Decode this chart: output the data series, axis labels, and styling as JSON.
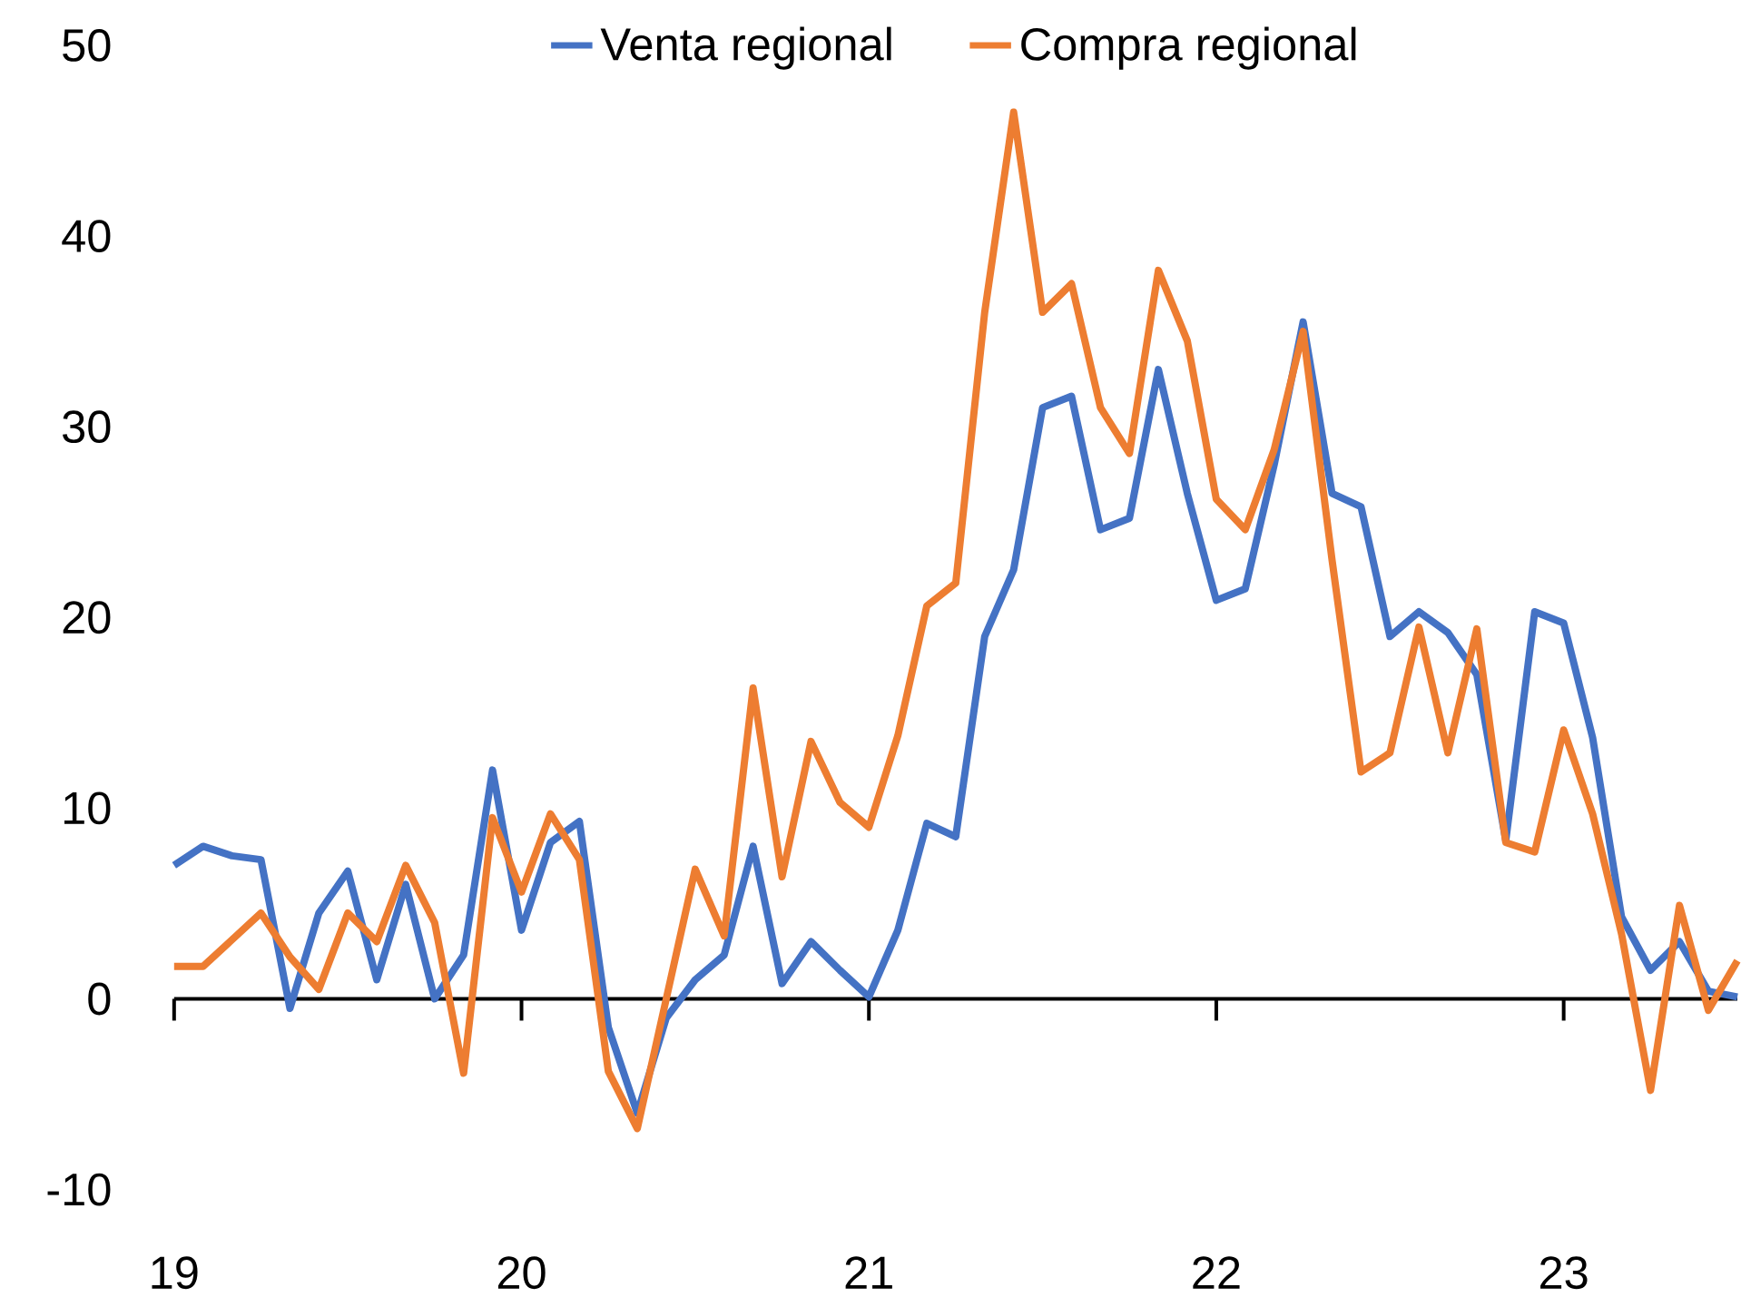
{
  "chart_data": {
    "type": "line",
    "x": [
      "2019-01",
      "2019-02",
      "2019-03",
      "2019-04",
      "2019-05",
      "2019-06",
      "2019-07",
      "2019-08",
      "2019-09",
      "2019-10",
      "2019-11",
      "2019-12",
      "2020-01",
      "2020-02",
      "2020-03",
      "2020-04",
      "2020-05",
      "2020-06",
      "2020-07",
      "2020-08",
      "2020-09",
      "2020-10",
      "2020-11",
      "2020-12",
      "2021-01",
      "2021-02",
      "2021-03",
      "2021-04",
      "2021-05",
      "2021-06",
      "2021-07",
      "2021-08",
      "2021-09",
      "2021-10",
      "2021-11",
      "2021-12",
      "2022-01",
      "2022-02",
      "2022-03",
      "2022-04",
      "2022-05",
      "2022-06",
      "2022-07",
      "2022-08",
      "2022-09",
      "2022-10",
      "2022-11",
      "2022-12",
      "2023-01",
      "2023-02",
      "2023-03",
      "2023-04",
      "2023-05",
      "2023-06",
      "2023-07"
    ],
    "series": [
      {
        "name": "Venta regional",
        "color": "#4472c4",
        "values": [
          7.0,
          8.0,
          7.5,
          7.3,
          -0.5,
          4.5,
          6.7,
          1.0,
          6.0,
          0.0,
          2.3,
          12.0,
          3.6,
          8.2,
          9.3,
          -1.5,
          -6.0,
          -1.0,
          1.0,
          2.3,
          8.0,
          0.8,
          3.0,
          1.5,
          0.1,
          3.6,
          9.2,
          8.5,
          19.0,
          22.5,
          31.0,
          31.6,
          24.6,
          25.2,
          33.0,
          26.5,
          20.9,
          21.5,
          28.0,
          35.5,
          26.5,
          25.8,
          19.0,
          20.3,
          19.2,
          17.0,
          8.3,
          20.3,
          19.7,
          13.7,
          4.3,
          1.5,
          3.0,
          0.4,
          0.1
        ]
      },
      {
        "name": "Compra regional",
        "color": "#ed7d31",
        "values": [
          1.7,
          1.7,
          3.1,
          4.5,
          2.2,
          0.5,
          4.5,
          3.0,
          7.0,
          4.0,
          -3.9,
          9.5,
          5.6,
          9.7,
          7.3,
          -3.8,
          -6.8,
          0.0,
          6.8,
          3.3,
          16.3,
          6.4,
          13.5,
          10.3,
          9.0,
          13.8,
          20.6,
          21.8,
          36.0,
          46.5,
          36.0,
          37.5,
          31.0,
          28.6,
          38.2,
          34.5,
          26.2,
          24.6,
          28.8,
          35.0,
          23.0,
          11.9,
          12.9,
          19.5,
          12.9,
          19.4,
          8.2,
          7.7,
          14.1,
          9.7,
          3.4,
          -4.8,
          4.9,
          -0.6,
          2.0
        ]
      }
    ],
    "xlim": [
      "2019-01",
      "2023-07"
    ],
    "xticks": [
      {
        "value": "2019-01",
        "label": "19"
      },
      {
        "value": "2020-01",
        "label": "20"
      },
      {
        "value": "2021-01",
        "label": "21"
      },
      {
        "value": "2022-01",
        "label": "22"
      },
      {
        "value": "2023-01",
        "label": "23"
      }
    ],
    "ylim": [
      -10,
      50
    ],
    "yticks": [
      -10,
      0,
      10,
      20,
      30,
      40,
      50
    ],
    "legend": "top"
  }
}
